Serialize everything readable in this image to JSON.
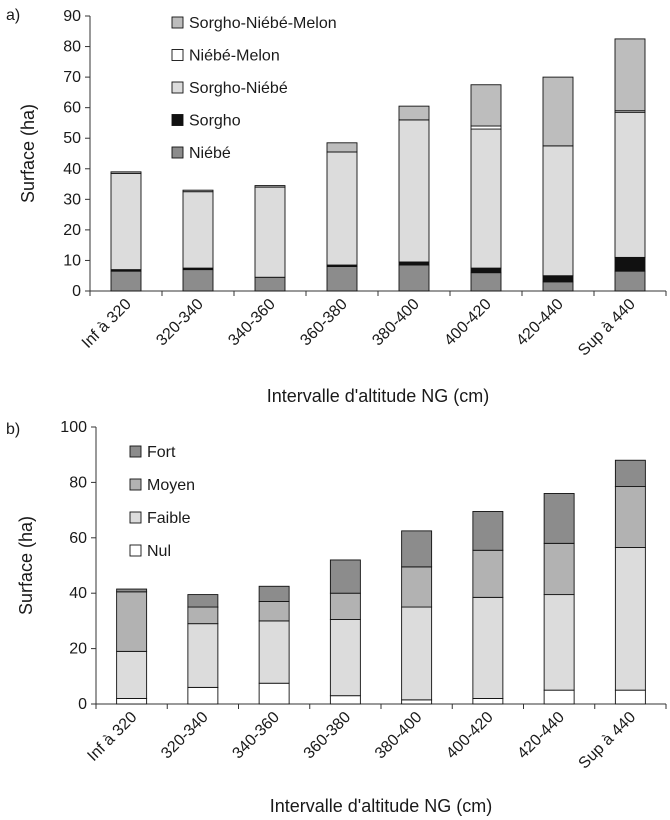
{
  "chart_data": [
    {
      "panel_label": "a)",
      "type": "bar",
      "stacked": true,
      "ylabel": "Surface (ha)",
      "xlabel": "Intervalle d'altitude NG (cm)",
      "ylim": [
        0,
        90
      ],
      "yticks": [
        0,
        10,
        20,
        30,
        40,
        50,
        60,
        70,
        80,
        90
      ],
      "grid": false,
      "legend_position": "top-center",
      "categories": [
        "Inf à 320",
        "320-340",
        "340-360",
        "360-380",
        "380-400",
        "400-420",
        "420-440",
        "Sup à 440"
      ],
      "series": [
        {
          "name": "Niébé",
          "color": "#8c8c8c",
          "values": [
            6.5,
            7,
            4.5,
            8,
            8.5,
            6,
            3,
            6.5
          ]
        },
        {
          "name": "Sorgho",
          "color": "#111111",
          "values": [
            0.5,
            0.5,
            0,
            0.5,
            1,
            1.5,
            2,
            4.5
          ]
        },
        {
          "name": "Sorgho-Niébé",
          "color": "#dcdcdc",
          "values": [
            31.5,
            25,
            29.5,
            37,
            46.5,
            45.5,
            42.5,
            47.5
          ]
        },
        {
          "name": "Niébé-Melon",
          "color": "#ffffff",
          "values": [
            0,
            0,
            0,
            0,
            0,
            1,
            0,
            0.5
          ]
        },
        {
          "name": "Sorgho-Niébé-Melon",
          "color": "#bdbdbd",
          "values": [
            0.5,
            0.5,
            0.5,
            3,
            4.5,
            13.5,
            22.5,
            23.5
          ]
        }
      ]
    },
    {
      "panel_label": "b)",
      "type": "bar",
      "stacked": true,
      "ylabel": "Surface (ha)",
      "xlabel": "Intervalle d'altitude NG (cm)",
      "ylim": [
        0,
        100
      ],
      "yticks": [
        0,
        20,
        40,
        60,
        80,
        100
      ],
      "grid": false,
      "legend_position": "top-left",
      "categories": [
        "Inf à 320",
        "320-340",
        "340-360",
        "360-380",
        "380-400",
        "400-420",
        "420-440",
        "Sup à 440"
      ],
      "series": [
        {
          "name": "Nul",
          "color": "#ffffff",
          "values": [
            2,
            6,
            7.5,
            3,
            1.5,
            2,
            5,
            5
          ]
        },
        {
          "name": "Faible",
          "color": "#dcdcdc",
          "values": [
            17,
            23,
            22.5,
            27.5,
            33.5,
            36.5,
            34.5,
            51.5
          ]
        },
        {
          "name": "Moyen",
          "color": "#b2b2b2",
          "values": [
            21.5,
            6,
            7,
            9.5,
            14.5,
            17,
            18.5,
            22
          ]
        },
        {
          "name": "Fort",
          "color": "#8c8c8c",
          "values": [
            1,
            4.5,
            5.5,
            12,
            13,
            14,
            18,
            9.5
          ]
        }
      ]
    }
  ]
}
